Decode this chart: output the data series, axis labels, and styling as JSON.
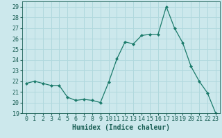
{
  "x": [
    0,
    1,
    2,
    3,
    4,
    5,
    6,
    7,
    8,
    9,
    10,
    11,
    12,
    13,
    14,
    15,
    16,
    17,
    18,
    19,
    20,
    21,
    22,
    23
  ],
  "y": [
    21.8,
    22.0,
    21.8,
    21.6,
    21.6,
    20.5,
    20.2,
    20.3,
    20.2,
    20.0,
    21.9,
    24.1,
    25.7,
    25.5,
    26.3,
    26.4,
    26.4,
    29.0,
    27.0,
    25.6,
    23.4,
    22.0,
    20.9,
    19.0
  ],
  "line_color": "#1a7a6a",
  "marker": "D",
  "marker_size": 2.2,
  "bg_color": "#cce8ec",
  "grid_color": "#b0d8dd",
  "xlabel": "Humidex (Indice chaleur)",
  "xlim": [
    -0.5,
    23.5
  ],
  "ylim": [
    19,
    29.5
  ],
  "yticks": [
    19,
    20,
    21,
    22,
    23,
    24,
    25,
    26,
    27,
    28,
    29
  ],
  "xticks": [
    0,
    1,
    2,
    3,
    4,
    5,
    6,
    7,
    8,
    9,
    10,
    11,
    12,
    13,
    14,
    15,
    16,
    17,
    18,
    19,
    20,
    21,
    22,
    23
  ],
  "tick_color": "#1a5f55",
  "axis_color": "#1a5f55",
  "font_color": "#1a5f55",
  "xlabel_fontsize": 7,
  "tick_fontsize": 6
}
